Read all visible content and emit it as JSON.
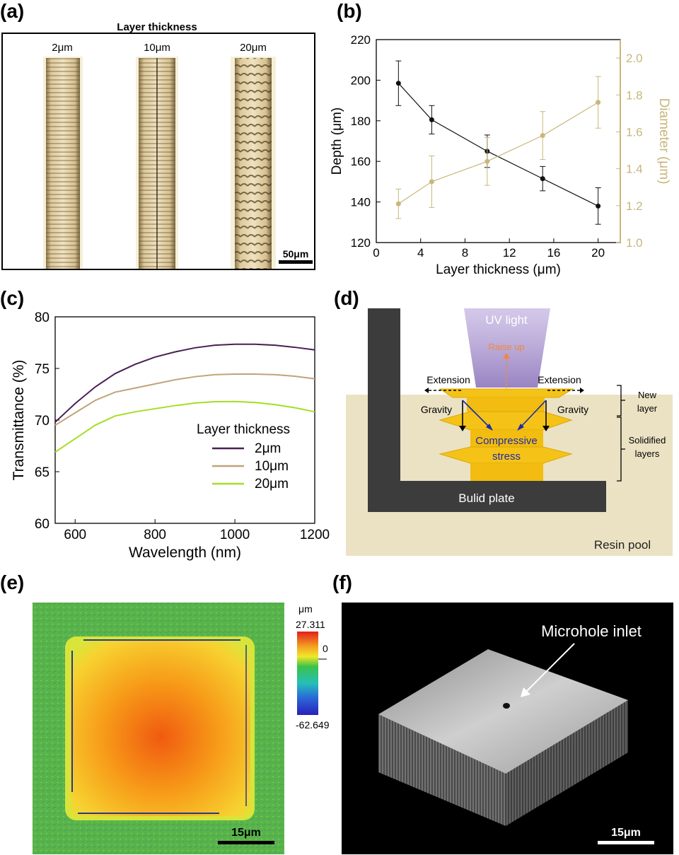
{
  "panels": {
    "a": {
      "label": "(a)",
      "title": "Layer thickness",
      "columns": [
        "2μm",
        "10μm",
        "20μm"
      ],
      "scalebar": "50μm",
      "colors": {
        "frame": "#000000",
        "tube": "#c9b07a",
        "edge": "#6b5a36"
      }
    },
    "b": {
      "label": "(b)"
    },
    "c": {
      "label": "(c)"
    },
    "d": {
      "label": "(d)",
      "uv_light": "UV light",
      "raise_up": "Raise up",
      "extension_left": "Extension",
      "extension_right": "Extension",
      "gravity_left": "Gravity",
      "gravity_right": "Gravity",
      "compressive": "Compressive",
      "stress": "stress",
      "new": "New",
      "layer": "layer",
      "solidified": "Solidified",
      "layers": "layers",
      "plate": "Bulid plate",
      "pool": "Resin pool",
      "colors": {
        "pool": "#ebe2c4",
        "plate": "#3c3c3c",
        "uv": "#9b86c2",
        "print": "#f5c318",
        "arrow_orange": "#f0883e",
        "arrow_blue": "#1b2aa8"
      }
    },
    "e": {
      "label": "(e)",
      "unit": "μm",
      "max": "27.311",
      "zero": "0",
      "min": "-62.649",
      "scalebar": "15μm"
    },
    "f": {
      "label": "(f)",
      "annotation": "Microhole inlet",
      "scalebar": "15μm"
    }
  },
  "chart_data": [
    {
      "type": "line",
      "panel": "b",
      "title": "",
      "xlabel": "Layer thickness (μm)",
      "ylabel": "Depth (μm)",
      "y2label": "Diameter (μm)",
      "xlim": [
        0,
        22
      ],
      "ylim": [
        120,
        220
      ],
      "y2lim": [
        1.0,
        2.1
      ],
      "xticks": [
        "0",
        "4",
        "8",
        "12",
        "16",
        "20"
      ],
      "yticks": [
        "120",
        "140",
        "160",
        "180",
        "200",
        "220"
      ],
      "y2ticks": [
        "1.0",
        "1.2",
        "1.4",
        "1.6",
        "1.8",
        "2.0"
      ],
      "series": [
        {
          "name": "Depth",
          "axis": "left",
          "color": "#111111",
          "x": [
            2,
            5,
            10,
            15,
            20
          ],
          "values": [
            198.5,
            180.5,
            165,
            151.5,
            138
          ],
          "errors": [
            11,
            7,
            8,
            6,
            9
          ]
        },
        {
          "name": "Diameter",
          "axis": "right",
          "color": "#c9b67a",
          "x": [
            2,
            5,
            10,
            15,
            20
          ],
          "values": [
            1.21,
            1.33,
            1.44,
            1.58,
            1.76
          ],
          "errors": [
            0.08,
            0.14,
            0.13,
            0.13,
            0.14
          ]
        }
      ]
    },
    {
      "type": "line",
      "panel": "c",
      "xlabel": "Wavelength (nm)",
      "ylabel": "Transmittance (%)",
      "xlim": [
        550,
        1200
      ],
      "ylim": [
        60,
        80
      ],
      "xticks": [
        "600",
        "800",
        "1000",
        "1200"
      ],
      "yticks": [
        "60",
        "65",
        "70",
        "75",
        "80"
      ],
      "legend_title": "Layer thickness",
      "legend_position": "right",
      "x": [
        550,
        600,
        650,
        700,
        750,
        800,
        850,
        900,
        950,
        1000,
        1050,
        1100,
        1150,
        1200
      ],
      "series": [
        {
          "name": "2μm",
          "color": "#4b1f55",
          "values": [
            69.8,
            71.6,
            73.2,
            74.5,
            75.4,
            76.1,
            76.6,
            77.0,
            77.25,
            77.35,
            77.35,
            77.25,
            77.05,
            76.8
          ]
        },
        {
          "name": "10μm",
          "color": "#c0a37a",
          "values": [
            69.5,
            70.7,
            71.9,
            72.7,
            73.1,
            73.5,
            73.9,
            74.2,
            74.4,
            74.45,
            74.45,
            74.4,
            74.25,
            74.0
          ]
        },
        {
          "name": "20μm",
          "color": "#a4de24",
          "values": [
            66.9,
            68.2,
            69.5,
            70.4,
            70.8,
            71.1,
            71.4,
            71.65,
            71.78,
            71.8,
            71.7,
            71.5,
            71.2,
            70.8
          ]
        }
      ]
    }
  ]
}
